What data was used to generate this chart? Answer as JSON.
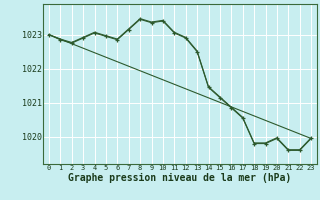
{
  "background_color": "#b8e8e8",
  "plot_bg_color": "#c8eef0",
  "grid_color": "#ffffff",
  "line_color": "#2d5a2d",
  "marker_color": "#2d5a2d",
  "title": "Graphe pression niveau de la mer (hPa)",
  "ylabel_ticks": [
    1020,
    1021,
    1022,
    1023
  ],
  "xlim": [
    -0.5,
    23.5
  ],
  "ylim": [
    1019.2,
    1023.9
  ],
  "series_main": {
    "x": [
      0,
      1,
      2,
      3,
      4,
      5,
      6,
      7,
      8,
      9,
      10,
      11,
      12,
      13,
      14,
      15,
      16,
      17,
      18,
      19,
      20,
      21,
      22,
      23
    ],
    "y": [
      1023.0,
      1022.85,
      1022.75,
      1022.9,
      1023.05,
      1022.95,
      1022.85,
      1023.15,
      1023.45,
      1023.35,
      1023.4,
      1023.05,
      1022.9,
      1022.5,
      1021.45,
      1021.15,
      1020.85,
      1020.55,
      1019.8,
      1019.8,
      1019.95,
      1019.6,
      1019.6,
      1019.95
    ]
  },
  "series_straight": {
    "x": [
      0,
      23
    ],
    "y": [
      1023.0,
      1019.95
    ]
  },
  "series_offset": {
    "x": [
      0,
      1,
      2,
      3,
      4,
      5,
      6,
      7,
      8,
      9,
      10,
      11,
      12,
      13,
      14,
      15,
      16,
      17,
      18,
      19,
      20,
      21,
      22,
      23
    ],
    "y": [
      1023.0,
      1022.87,
      1022.77,
      1022.92,
      1023.07,
      1022.97,
      1022.87,
      1023.17,
      1023.47,
      1023.37,
      1023.42,
      1023.07,
      1022.92,
      1022.52,
      1021.47,
      1021.17,
      1020.87,
      1020.57,
      1019.82,
      1019.82,
      1019.97,
      1019.62,
      1019.62,
      1019.97
    ]
  }
}
